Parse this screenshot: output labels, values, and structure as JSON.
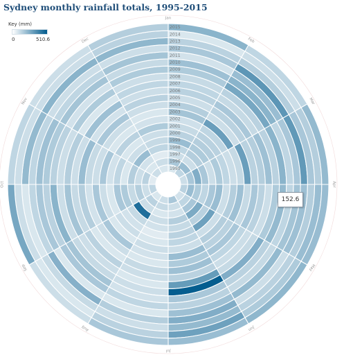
{
  "title": "Sydney monthly rainfall totals, 1995-2015",
  "key": {
    "label": "Key (mm)",
    "min": "0",
    "max": "510.6"
  },
  "tooltip": {
    "value": "152.6"
  },
  "colors": {
    "low": "#ffffff",
    "high": "#005a8d",
    "grid": "#ffffff",
    "month_text": "#999999",
    "year_text": "#777777"
  },
  "chart_data": {
    "type": "heatmap",
    "layout": "radial",
    "title": "Sydney monthly rainfall totals, 1995-2015",
    "value_range": [
      0,
      510.6
    ],
    "months": [
      "Jan",
      "Feb",
      "Mar",
      "Apr",
      "May",
      "Jun",
      "Jul",
      "Aug",
      "Sep",
      "Oct",
      "Nov",
      "Dec"
    ],
    "years": [
      "1995",
      "1996",
      "1997",
      "1998",
      "1999",
      "2000",
      "2001",
      "2002",
      "2003",
      "2004",
      "2005",
      "2006",
      "2007",
      "2008",
      "2009",
      "2010",
      "2011",
      "2012",
      "2013",
      "2014",
      "2015"
    ],
    "highlighted": {
      "month": "Apr",
      "year": "2015",
      "value": 152.6
    },
    "series": [
      {
        "month": "Jan",
        "values": [
          40,
          120,
          60,
          80,
          150,
          90,
          70,
          55,
          130,
          100,
          60,
          90,
          80,
          70,
          110,
          140,
          50,
          120,
          90,
          40,
          180
        ]
      },
      {
        "month": "Feb",
        "values": [
          80,
          150,
          60,
          100,
          110,
          100,
          90,
          80,
          250,
          60,
          90,
          120,
          70,
          90,
          220,
          180,
          150,
          280,
          100,
          60,
          80
        ]
      },
      {
        "month": "Mar",
        "values": [
          60,
          120,
          200,
          120,
          60,
          110,
          80,
          60,
          70,
          250,
          90,
          100,
          140,
          90,
          180,
          80,
          120,
          270,
          120,
          100,
          160
        ]
      },
      {
        "month": "Apr",
        "values": [
          90,
          150,
          110,
          80,
          120,
          150,
          60,
          100,
          140,
          70,
          120,
          90,
          60,
          110,
          160,
          80,
          130,
          140,
          100,
          150,
          152.6
        ]
      },
      {
        "month": "May",
        "values": [
          50,
          80,
          120,
          210,
          90,
          240,
          60,
          100,
          90,
          120,
          80,
          60,
          70,
          200,
          90,
          70,
          160,
          60,
          90,
          110,
          170
        ]
      },
      {
        "month": "Jun",
        "values": [
          120,
          60,
          50,
          100,
          70,
          90,
          80,
          60,
          150,
          110,
          140,
          90,
          260,
          500,
          120,
          90,
          140,
          200,
          160,
          240,
          150
        ]
      },
      {
        "month": "Jul",
        "values": [
          60,
          70,
          40,
          60,
          50,
          30,
          40,
          60,
          50,
          40,
          70,
          60,
          40,
          60,
          50,
          80,
          40,
          100,
          60,
          90,
          120
        ]
      },
      {
        "month": "Aug",
        "values": [
          40,
          90,
          60,
          430,
          70,
          50,
          60,
          40,
          120,
          60,
          40,
          90,
          60,
          70,
          130,
          120,
          40,
          190,
          70,
          40,
          60
        ]
      },
      {
        "month": "Sep",
        "values": [
          80,
          60,
          100,
          70,
          110,
          120,
          40,
          60,
          120,
          50,
          100,
          70,
          130,
          60,
          180,
          90,
          120,
          80,
          40,
          60,
          220
        ]
      },
      {
        "month": "Oct",
        "values": [
          30,
          90,
          60,
          100,
          40,
          80,
          50,
          120,
          60,
          70,
          150,
          60,
          100,
          60,
          90,
          110,
          140,
          80,
          160,
          60,
          80
        ]
      },
      {
        "month": "Nov",
        "values": [
          60,
          40,
          50,
          150,
          60,
          40,
          90,
          40,
          60,
          120,
          50,
          140,
          40,
          110,
          50,
          130,
          80,
          60,
          180,
          60,
          60
        ]
      },
      {
        "month": "Dec",
        "values": [
          40,
          60,
          30,
          80,
          70,
          60,
          110,
          50,
          40,
          60,
          90,
          60,
          80,
          60,
          110,
          70,
          130,
          60,
          170,
          90,
          100
        ]
      }
    ]
  }
}
